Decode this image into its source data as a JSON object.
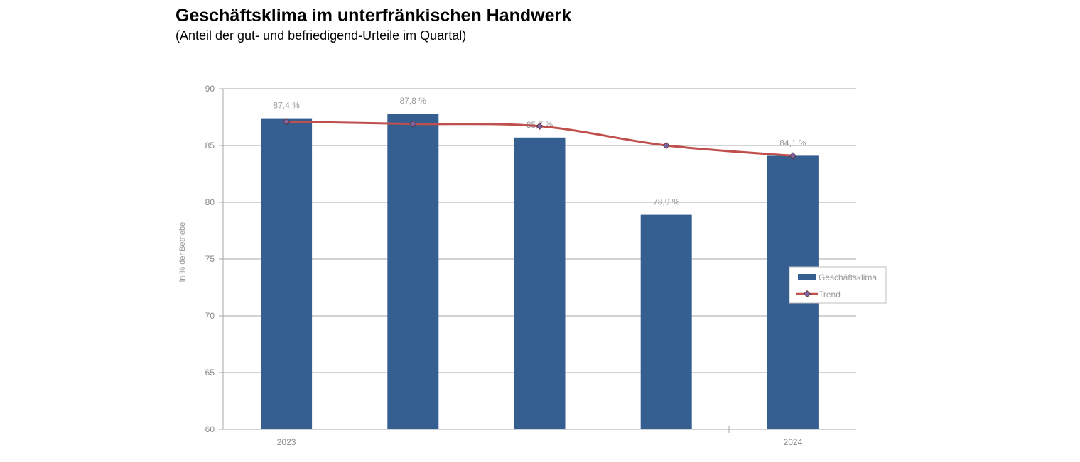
{
  "chart_data": {
    "type": "bar",
    "title": "Geschäftsklima im unterfränkischen Handwerk",
    "subtitle": "(Anteil der gut- und befriedigend-Urteile im Quartal)",
    "ylabel": "in % der Betriebe",
    "xlabel": "",
    "ylim": [
      60,
      90
    ],
    "yticks": [
      60,
      65,
      70,
      75,
      80,
      85,
      90
    ],
    "categories": [
      "2023",
      "",
      "",
      "",
      "2024"
    ],
    "grid": true,
    "legend_position": "right",
    "series": [
      {
        "name": "Geschäftsklima",
        "kind": "bar",
        "color": "#355e91",
        "values": [
          87.4,
          87.8,
          85.7,
          78.9,
          84.1
        ],
        "labels": [
          "87,4 %",
          "87,8 %",
          "85,7 %",
          "78,9 %",
          "84,1 %"
        ]
      },
      {
        "name": "Trend",
        "kind": "line",
        "color": "#c0504d",
        "marker_color": "#8064a2",
        "values": [
          87.1,
          86.9,
          86.7,
          85.0,
          84.1
        ]
      }
    ]
  }
}
